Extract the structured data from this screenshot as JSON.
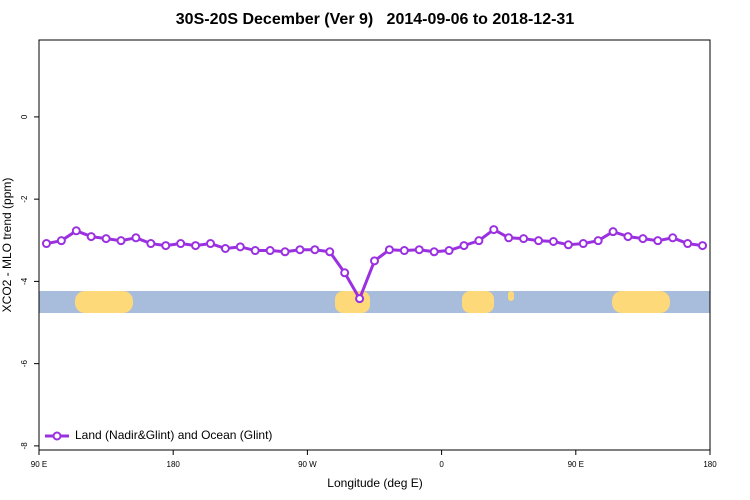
{
  "chart_data": {
    "type": "line",
    "title": "30S-20S December (Ver 9)   2014-09-06 to 2018-12-31",
    "x_label": "Longitude (deg E)",
    "y_label": "XCO2 - MLO trend (ppm)",
    "xlim": [
      90,
      540
    ],
    "ylim": [
      -8.1,
      1.87
    ],
    "xticks": [
      {
        "value": 90,
        "label": "90 E"
      },
      {
        "value": 180,
        "label": "180"
      },
      {
        "value": 270,
        "label": "90 W"
      },
      {
        "value": 360,
        "label": "0"
      },
      {
        "value": 450,
        "label": "90 E"
      },
      {
        "value": 540,
        "label": "180"
      }
    ],
    "yticks": [
      0,
      -2,
      -4,
      -6,
      -8
    ],
    "x": [
      95,
      105,
      115,
      125,
      135,
      145,
      155,
      165,
      175,
      185,
      195,
      205,
      215,
      225,
      235,
      245,
      255,
      265,
      275,
      285,
      295,
      305,
      315,
      325,
      335,
      345,
      355,
      365,
      375,
      385,
      395,
      405,
      415,
      425,
      435,
      445,
      455,
      465,
      475,
      485,
      495,
      505,
      515,
      525,
      535
    ],
    "series": [
      {
        "name": "Land (Nadir&Glint) and Ocean (Glint)",
        "color": "#9b30e0",
        "values": [
          -3.08,
          -3.01,
          -2.77,
          -2.91,
          -2.96,
          -3.01,
          -2.94,
          -3.08,
          -3.13,
          -3.08,
          -3.13,
          -3.08,
          -3.2,
          -3.16,
          -3.25,
          -3.25,
          -3.28,
          -3.23,
          -3.23,
          -3.28,
          -3.79,
          -4.42,
          -3.5,
          -3.23,
          -3.25,
          -3.23,
          -3.28,
          -3.25,
          -3.13,
          -3.01,
          -2.74,
          -2.94,
          -2.96,
          -3.01,
          -3.03,
          -3.11,
          -3.08,
          -3.01,
          -2.79,
          -2.91,
          -2.96,
          -3.01,
          -2.94,
          -3.08,
          -3.13
        ]
      }
    ],
    "legend": "bottom-left"
  }
}
